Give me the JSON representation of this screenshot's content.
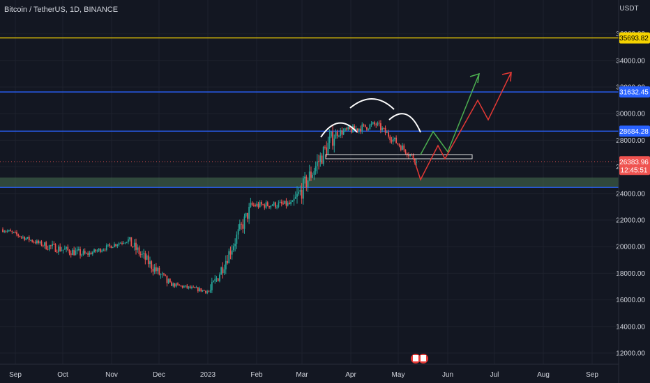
{
  "header": {
    "symbol": "Bitcoin / TetherUS",
    "interval": "1D",
    "exchange": "BINANCE"
  },
  "axis": {
    "currency": "USDT",
    "price_ticks": [
      "36000.00",
      "34000.00",
      "32000.00",
      "30000.00",
      "28000.00",
      "26000.00",
      "24000.00",
      "22000.00",
      "20000.00",
      "18000.00",
      "16000.00",
      "14000.00",
      "12000.00"
    ],
    "time_ticks": [
      "Sep",
      "Oct",
      "Nov",
      "Dec",
      "2023",
      "Feb",
      "Mar",
      "Apr",
      "May",
      "Jun",
      "Jul",
      "Aug",
      "Sep"
    ]
  },
  "labels": {
    "yellow_level": "35693.82",
    "blue_upper": "31632.45",
    "blue_middle": "28684.28",
    "last_price": "26383.96",
    "countdown": "12:45:51"
  },
  "colors": {
    "background": "#131722",
    "up": "#26a69a",
    "down": "#ef5350",
    "blue_line": "#2962ff",
    "yellow_line": "#f5d300",
    "zone_fill": "#3b5a45",
    "arrow_green": "#4caf50",
    "arrow_red": "#e53935"
  },
  "chart_data": {
    "type": "candlestick",
    "symbol": "Bitcoin / TetherUS",
    "interval": "1D",
    "exchange": "BINANCE",
    "y_unit": "USDT",
    "ylim": [
      11500,
      37300
    ],
    "horizontal_levels": [
      {
        "price": 35693.82,
        "color": "#f5d300"
      },
      {
        "price": 31632.45,
        "color": "#2962ff"
      },
      {
        "price": 28684.28,
        "color": "#2962ff"
      },
      {
        "price": 24450,
        "color": "#2962ff"
      }
    ],
    "zone": {
      "from": 24450,
      "to": 25200
    },
    "last_price": 26383.96,
    "monthly_path": [
      {
        "month": "Aug",
        "open": 21300,
        "high": 22300,
        "low": 19700,
        "close": 20100
      },
      {
        "month": "Sep",
        "open": 20100,
        "high": 22700,
        "low": 18400,
        "close": 19400
      },
      {
        "month": "Oct",
        "open": 19400,
        "high": 20900,
        "low": 18300,
        "close": 20500
      },
      {
        "month": "Nov",
        "open": 20500,
        "high": 21400,
        "low": 15600,
        "close": 17200
      },
      {
        "month": "Dec",
        "open": 17200,
        "high": 18400,
        "low": 16300,
        "close": 16600
      },
      {
        "month": "2023",
        "open": 16600,
        "high": 23900,
        "low": 16500,
        "close": 23100
      },
      {
        "month": "Feb",
        "open": 23100,
        "high": 25200,
        "low": 21400,
        "close": 23200
      },
      {
        "month": "Mar",
        "open": 23200,
        "high": 29200,
        "low": 19600,
        "close": 28500
      },
      {
        "month": "Apr",
        "open": 28500,
        "high": 31000,
        "low": 27000,
        "close": 29200
      },
      {
        "month": "May",
        "open": 29200,
        "high": 29800,
        "low": 25900,
        "close": 26384
      }
    ]
  }
}
